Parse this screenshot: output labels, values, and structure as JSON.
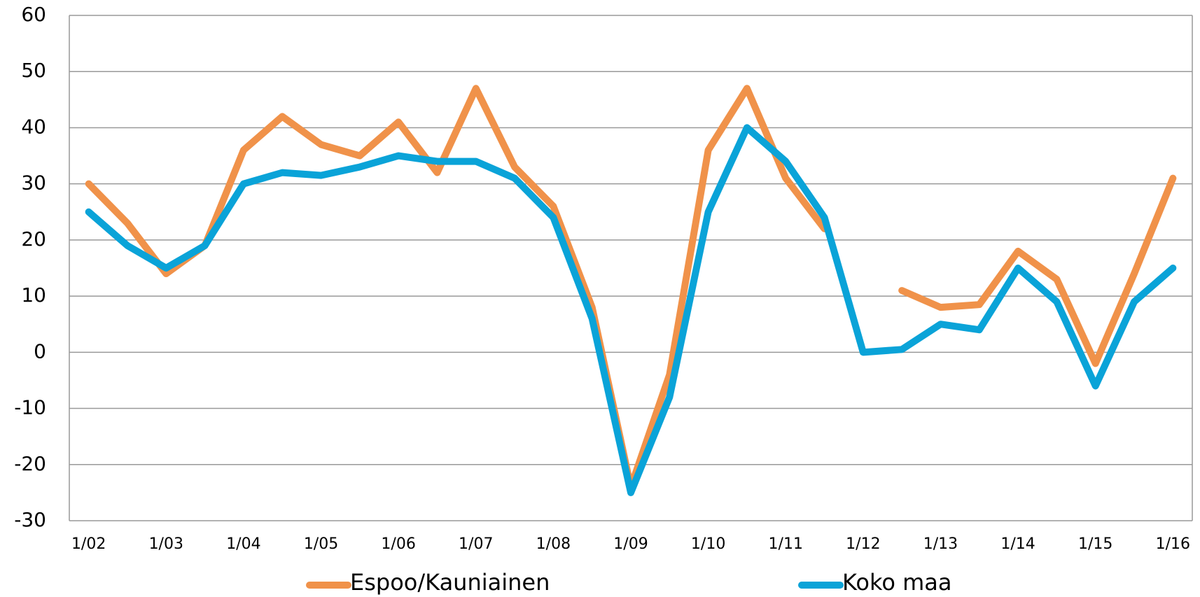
{
  "chart_data": {
    "type": "line",
    "categories": [
      "1/02",
      null,
      "1/03",
      null,
      "1/04",
      null,
      "1/05",
      null,
      "1/06",
      null,
      "1/07",
      null,
      "1/08",
      null,
      "1/09",
      null,
      "1/10",
      null,
      "1/11",
      null,
      "1/12",
      null,
      "1/13",
      null,
      "1/14",
      null,
      "1/15",
      null,
      "1/16"
    ],
    "series": [
      {
        "name": "Espoo/Kauniainen",
        "color": "#f0924a",
        "values": [
          30,
          23,
          14,
          19,
          36,
          42,
          37,
          35,
          41,
          32,
          47,
          33,
          26,
          8,
          -24,
          -4,
          36,
          47,
          31,
          22,
          null,
          11,
          8,
          8.5,
          18,
          13,
          -2,
          14,
          31
        ]
      },
      {
        "name": "Koko maa",
        "color": "#0aa3d8",
        "values": [
          25,
          19,
          15,
          19,
          30,
          32,
          31.5,
          33,
          35,
          34,
          34,
          31,
          24,
          6,
          -25,
          -8,
          25,
          40,
          34,
          24,
          0,
          0.5,
          5,
          4,
          15,
          9,
          -6,
          9,
          15
        ]
      }
    ],
    "ylim": [
      -30,
      60
    ],
    "yticks": [
      -30,
      -20,
      -10,
      0,
      10,
      20,
      30,
      40,
      50,
      60
    ],
    "grid": true
  }
}
